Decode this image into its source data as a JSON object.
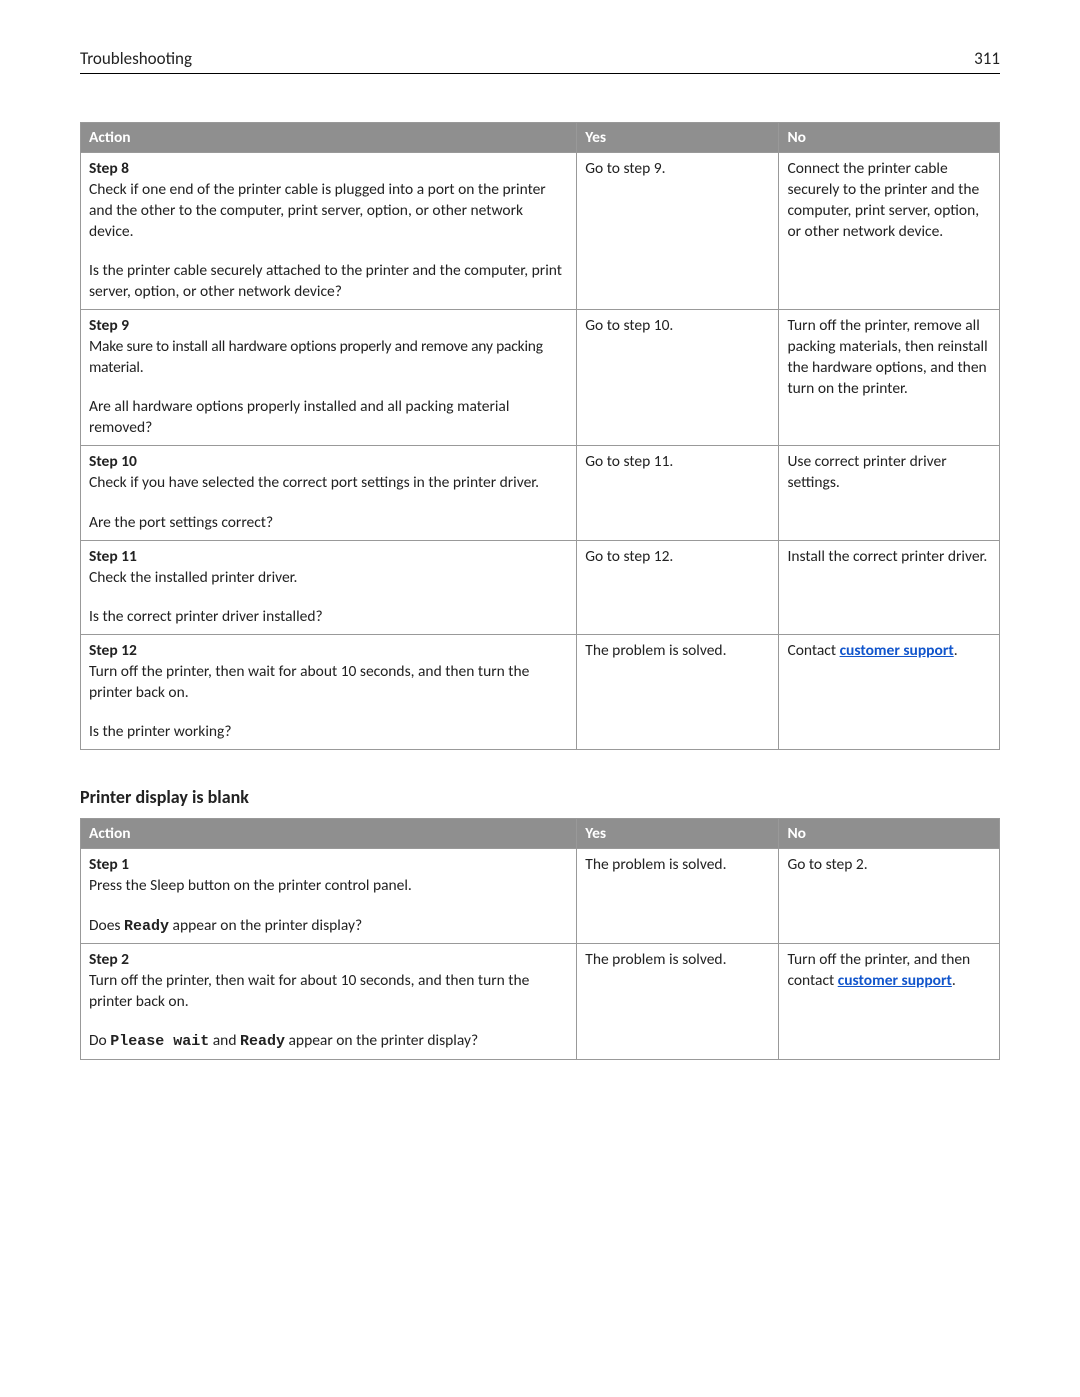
{
  "header": {
    "title": "Troubleshooting",
    "page_num": "311"
  },
  "table1": {
    "headers": {
      "action": "Action",
      "yes": "Yes",
      "no": "No"
    },
    "rows": [
      {
        "step": "Step 8",
        "desc": "Check if one end of the printer cable is plugged into a port on the printer and the other to the computer, print server, option, or other network device.",
        "question": "Is the printer cable securely attached to the printer and the computer, print server, option, or other network device?",
        "yes": "Go to step 9.",
        "no": "Connect the printer cable securely to the printer and the computer, print server, option, or other network device."
      },
      {
        "step": "Step 9",
        "desc": "Make sure to install all hardware options properly and remove any packing material.",
        "question": "Are all hardware options properly installed and all packing material removed?",
        "yes": "Go to step 10.",
        "no": "Turn off the printer, remove all packing materials, then reinstall the hardware options, and then turn on the printer."
      },
      {
        "step": "Step 10",
        "desc": "Check if you have selected the correct port settings in the printer driver.",
        "question": "Are the port settings correct?",
        "yes": "Go to step 11.",
        "no": "Use correct printer driver settings."
      },
      {
        "step": "Step 11",
        "desc": "Check the installed printer driver.",
        "question": "Is the correct printer driver installed?",
        "yes": "Go to step 12.",
        "no": "Install the correct printer driver."
      },
      {
        "step": "Step 12",
        "desc": "Turn off the printer, then wait for about 10 seconds, and then turn the printer back on.",
        "question": "Is the printer working?",
        "yes": "The problem is solved.",
        "no_prefix": "Contact ",
        "no_link": "customer support",
        "no_suffix": "."
      }
    ]
  },
  "section2": {
    "title": "Printer display is blank"
  },
  "table2": {
    "headers": {
      "action": "Action",
      "yes": "Yes",
      "no": "No"
    },
    "rows": [
      {
        "step": "Step 1",
        "desc": "Press the Sleep button on the printer control panel.",
        "q_pre": "Does ",
        "q_code1": "Ready",
        "q_post": " appear on the printer display?",
        "yes": "The problem is solved.",
        "no": "Go to step 2."
      },
      {
        "step": "Step 2",
        "desc": "Turn off the printer, then wait for about 10 seconds, and then turn the printer back on.",
        "q_pre": "Do ",
        "q_code1": "Please wait",
        "q_mid": " and ",
        "q_code2": "Ready",
        "q_post": " appear on the printer display?",
        "yes": "The problem is solved.",
        "no_prefix": "Turn off the printer, and then contact ",
        "no_link": "customer support",
        "no_suffix": "."
      }
    ]
  }
}
